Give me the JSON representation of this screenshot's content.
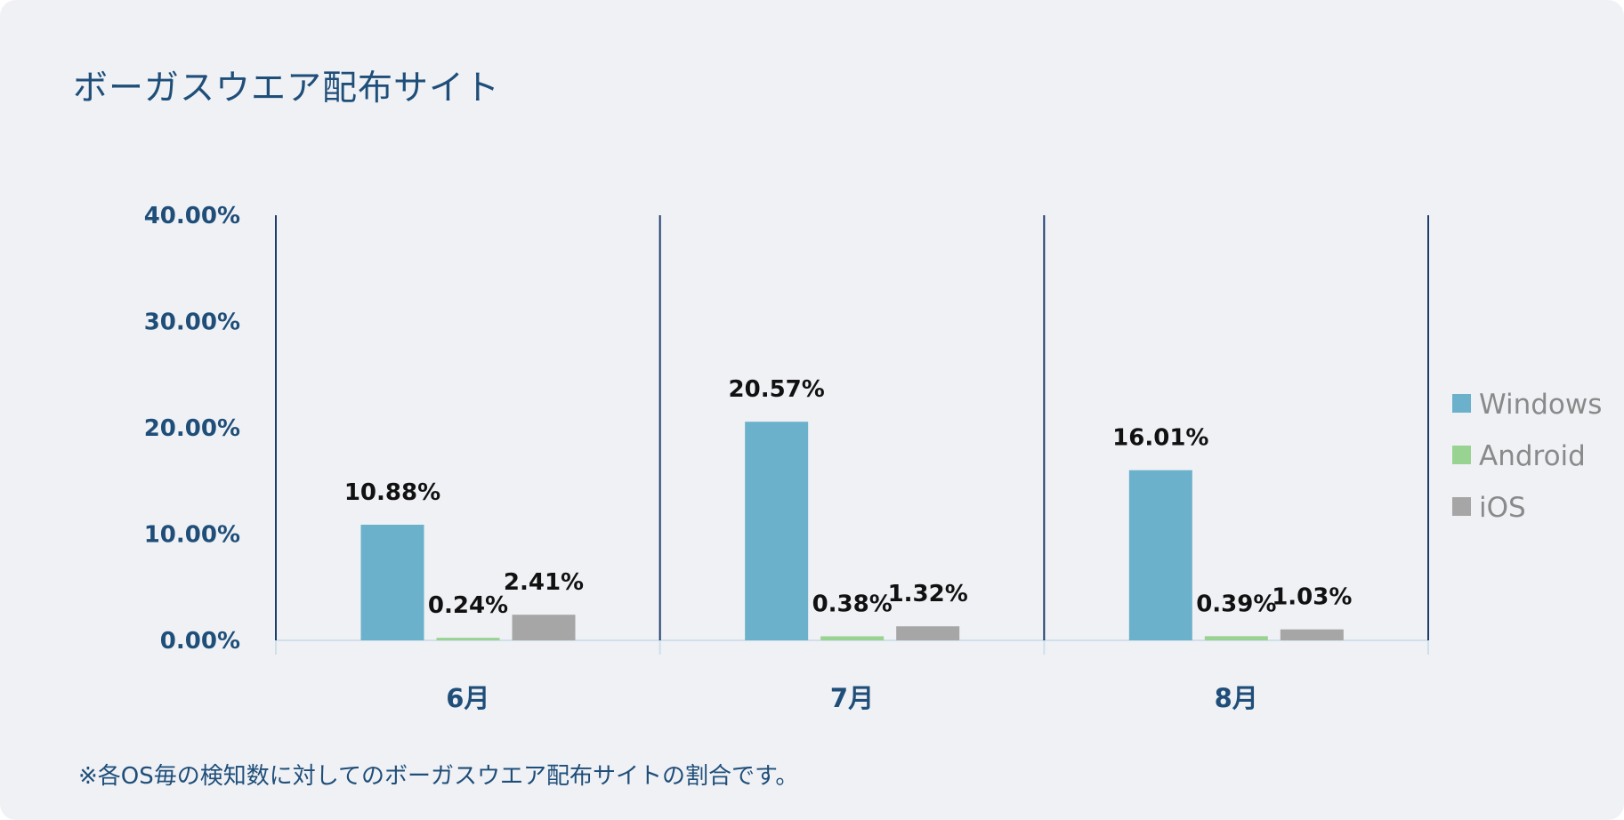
{
  "title": "ボーガスウエア配布サイト",
  "footnote": "※各OS毎の検知数に対してのボーガスウエア配布サイトの割合です。",
  "chart_data": {
    "type": "bar",
    "categories": [
      "6月",
      "7月",
      "8月"
    ],
    "series": [
      {
        "name": "Windows",
        "color": "#6cb1cb",
        "values": [
          10.88,
          20.57,
          16.01
        ],
        "labels": [
          "10.88%",
          "20.57%",
          "16.01%"
        ]
      },
      {
        "name": "Android",
        "color": "#99d392",
        "values": [
          0.24,
          0.38,
          0.39
        ],
        "labels": [
          "0.24%",
          "0.38%",
          "0.39%"
        ]
      },
      {
        "name": "iOS",
        "color": "#a6a6a6",
        "values": [
          2.41,
          1.32,
          1.03
        ],
        "labels": [
          "2.41%",
          "1.32%",
          "1.03%"
        ]
      }
    ],
    "ylim": [
      0,
      40
    ],
    "yticks": [
      0,
      10,
      20,
      30,
      40
    ],
    "ytick_labels": [
      "0.00%",
      "10.00%",
      "20.00%",
      "30.00%",
      "40.00%"
    ],
    "legend_position": "right",
    "category_separators": true,
    "grid": false
  }
}
